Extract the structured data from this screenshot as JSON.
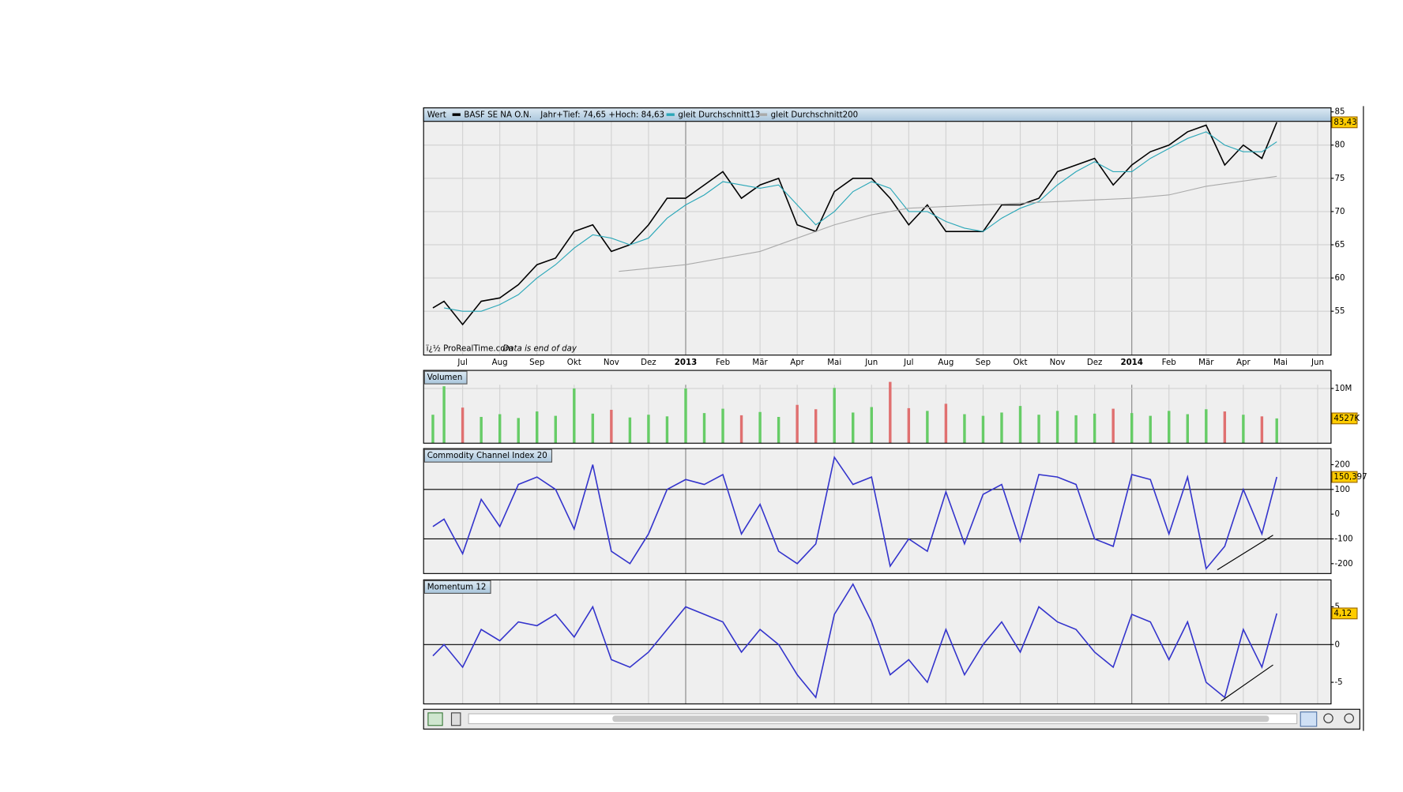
{
  "chart_data": [
    {
      "type": "line",
      "title": "Wert",
      "instrument": "BASF SE NA O.N.",
      "range_note": "Jahr+Tief: 74,65 +Hoch: 84,63",
      "footer_source": "ï¿½ ProRealTime.com",
      "footer_note": "Data is end of day",
      "x": [
        -0.8,
        -0.5,
        0,
        0.5,
        1,
        1.5,
        2,
        2.5,
        3,
        3.5,
        4,
        4.5,
        5,
        5.5,
        6,
        6.5,
        7,
        7.5,
        8,
        8.5,
        9,
        9.5,
        10,
        10.5,
        11,
        11.5,
        12,
        12.5,
        13,
        13.5,
        14,
        14.5,
        15,
        15.5,
        16,
        16.5,
        17,
        17.5,
        18,
        18.5,
        19,
        19.5,
        20,
        20.5,
        21,
        21.5,
        21.9
      ],
      "xlim": [
        -1.05,
        23.36
      ],
      "xticks": [
        {
          "value": 0,
          "label": "Jul"
        },
        {
          "value": 1,
          "label": "Aug"
        },
        {
          "value": 2,
          "label": "Sep"
        },
        {
          "value": 3,
          "label": "Okt"
        },
        {
          "value": 4,
          "label": "Nov"
        },
        {
          "value": 5,
          "label": "Dez"
        },
        {
          "value": 6,
          "label": "2013"
        },
        {
          "value": 7,
          "label": "Feb"
        },
        {
          "value": 8,
          "label": "Mär"
        },
        {
          "value": 9,
          "label": "Apr"
        },
        {
          "value": 10,
          "label": "Mai"
        },
        {
          "value": 11,
          "label": "Jun"
        },
        {
          "value": 12,
          "label": "Jul"
        },
        {
          "value": 13,
          "label": "Aug"
        },
        {
          "value": 14,
          "label": "Sep"
        },
        {
          "value": 15,
          "label": "Okt"
        },
        {
          "value": 16,
          "label": "Nov"
        },
        {
          "value": 17,
          "label": "Dez"
        },
        {
          "value": 18,
          "label": "2014"
        },
        {
          "value": 19,
          "label": "Feb"
        },
        {
          "value": 20,
          "label": "Mär"
        },
        {
          "value": 21,
          "label": "Apr"
        },
        {
          "value": 22,
          "label": "Mai"
        },
        {
          "value": 23,
          "label": "Jun"
        }
      ],
      "ylim": [
        48.4,
        85.6
      ],
      "yticks": [
        55,
        60,
        65,
        70,
        75,
        80,
        85
      ],
      "grid": true,
      "last_value": 83.43,
      "last_value_label": "83,43",
      "series": [
        {
          "name": "BASF SE NA O.N.",
          "color": "#000000",
          "values": [
            55.5,
            56.5,
            53,
            56.5,
            57,
            59,
            62,
            63,
            67,
            68,
            64,
            65,
            68,
            72,
            72,
            74,
            76,
            72,
            74,
            75,
            68,
            67,
            73,
            75,
            75,
            72,
            68,
            71,
            67,
            67,
            67,
            71,
            71,
            72,
            76,
            77,
            78,
            74,
            77,
            79,
            80,
            82,
            83,
            77,
            80,
            78,
            83.43
          ]
        },
        {
          "name": "gleit Durchschnitt13",
          "color": "#2aa7b8",
          "values": [
            null,
            55.5,
            55,
            55,
            56,
            57.5,
            60,
            62,
            64.5,
            66.5,
            66,
            65,
            66,
            69,
            71,
            72.5,
            74.5,
            74,
            73.5,
            74,
            71,
            68,
            70,
            73,
            74.5,
            73.5,
            70,
            70,
            68.5,
            67.5,
            67,
            69,
            70.5,
            71.5,
            74,
            76,
            77.5,
            76,
            76,
            78,
            79.5,
            81,
            82,
            80,
            79,
            79,
            80.5
          ]
        },
        {
          "name": "gleit Durchschnitt200",
          "color": "#aaaaaa",
          "x": [
            4.2,
            6,
            8,
            9,
            10,
            11,
            12,
            14,
            16,
            18,
            19,
            20,
            21.9
          ],
          "values": [
            61,
            62,
            64,
            66,
            68,
            69.5,
            70.5,
            71,
            71.5,
            72,
            72.5,
            73.8,
            75.3
          ]
        }
      ]
    },
    {
      "type": "bar",
      "title": "Volumen",
      "x": [
        -0.8,
        -0.5,
        0,
        0.5,
        1,
        1.5,
        2,
        2.5,
        3,
        3.5,
        4,
        4.5,
        5,
        5.5,
        6,
        6.5,
        7,
        7.5,
        8,
        8.5,
        9,
        9.5,
        10,
        10.5,
        11,
        11.5,
        12,
        12.5,
        13,
        13.5,
        14,
        14.5,
        15,
        15.5,
        16,
        16.5,
        17,
        17.5,
        18,
        18.5,
        19,
        19.5,
        20,
        20.5,
        21,
        21.5,
        21.9
      ],
      "ylim": [
        0,
        13300000
      ],
      "yticks": [
        {
          "value": 10000000,
          "label": "10M"
        }
      ],
      "up_color": "#66cc66",
      "down_color": "#e07070",
      "last_value": 4527000,
      "last_value_label": "4527K",
      "values": [
        5200000,
        10400000,
        6500000,
        4800000,
        5300000,
        4600000,
        5800000,
        5000000,
        10000000,
        5400000,
        6100000,
        4700000,
        5200000,
        4900000,
        10000000,
        5500000,
        6300000,
        5100000,
        5700000,
        4800000,
        7000000,
        6200000,
        10100000,
        5600000,
        6600000,
        11200000,
        6400000,
        5900000,
        7200000,
        5300000,
        5000000,
        5600000,
        6800000,
        5200000,
        5900000,
        5100000,
        5400000,
        6300000,
        5500000,
        5000000,
        5900000,
        5300000,
        6200000,
        5800000,
        5200000,
        4900000,
        4527000
      ]
    },
    {
      "type": "line",
      "title": "Commodity Channel Index 20",
      "x": [
        -0.8,
        -0.5,
        0,
        0.5,
        1,
        1.5,
        2,
        2.5,
        3,
        3.5,
        4,
        4.5,
        5,
        5.5,
        6,
        6.5,
        7,
        7.5,
        8,
        8.5,
        9,
        9.5,
        10,
        10.5,
        11,
        11.5,
        12,
        12.5,
        13,
        13.5,
        14,
        14.5,
        15,
        15.5,
        16,
        16.5,
        17,
        17.5,
        18,
        18.5,
        19,
        19.5,
        20,
        20.5,
        21,
        21.5,
        21.9
      ],
      "ylim": [
        -240,
        265
      ],
      "yticks": [
        -200,
        -100,
        0,
        100,
        200
      ],
      "hlines": [
        -100,
        100
      ],
      "last_value": 150.397,
      "last_value_label": "150,397",
      "series": [
        {
          "color": "#3333cc",
          "values": [
            -50,
            -20,
            -160,
            60,
            -50,
            120,
            150,
            100,
            -60,
            200,
            -150,
            -200,
            -80,
            100,
            140,
            120,
            160,
            -80,
            40,
            -150,
            -200,
            -120,
            230,
            120,
            150,
            -210,
            -100,
            -150,
            90,
            -120,
            80,
            120,
            -110,
            160,
            150,
            120,
            -100,
            -130,
            160,
            140,
            -80,
            150,
            -220,
            -130,
            100,
            -80,
            150.397
          ]
        }
      ],
      "trendline": {
        "x": [
          20.3,
          21.8
        ],
        "values": [
          -225,
          -85
        ]
      }
    },
    {
      "type": "line",
      "title": "Momentum 12",
      "x": [
        -0.8,
        -0.5,
        0,
        0.5,
        1,
        1.5,
        2,
        2.5,
        3,
        3.5,
        4,
        4.5,
        5,
        5.5,
        6,
        6.5,
        7,
        7.5,
        8,
        8.5,
        9,
        9.5,
        10,
        10.5,
        11,
        11.5,
        12,
        12.5,
        13,
        13.5,
        14,
        14.5,
        15,
        15.5,
        16,
        16.5,
        17,
        17.5,
        18,
        18.5,
        19,
        19.5,
        20,
        20.5,
        21,
        21.5,
        21.9
      ],
      "ylim": [
        -7.86,
        8.57
      ],
      "yticks": [
        -5,
        0,
        5
      ],
      "hlines": [
        0
      ],
      "last_value": 4.12,
      "last_value_label": "4,12",
      "series": [
        {
          "color": "#3333cc",
          "values": [
            -1.5,
            0,
            -3,
            2,
            0.5,
            3,
            2.5,
            4,
            1,
            5,
            -2,
            -3,
            -1,
            2,
            5,
            4,
            3,
            -1,
            2,
            0,
            -4,
            -7,
            4,
            8,
            3,
            -4,
            -2,
            -5,
            2,
            -4,
            0,
            3,
            -1,
            5,
            3,
            2,
            -1,
            -3,
            4,
            3,
            -2,
            3,
            -5,
            -7,
            2,
            -3,
            4.12
          ]
        }
      ],
      "trendline": {
        "x": [
          20.4,
          21.8
        ],
        "values": [
          -7.5,
          -2.7
        ]
      }
    }
  ]
}
